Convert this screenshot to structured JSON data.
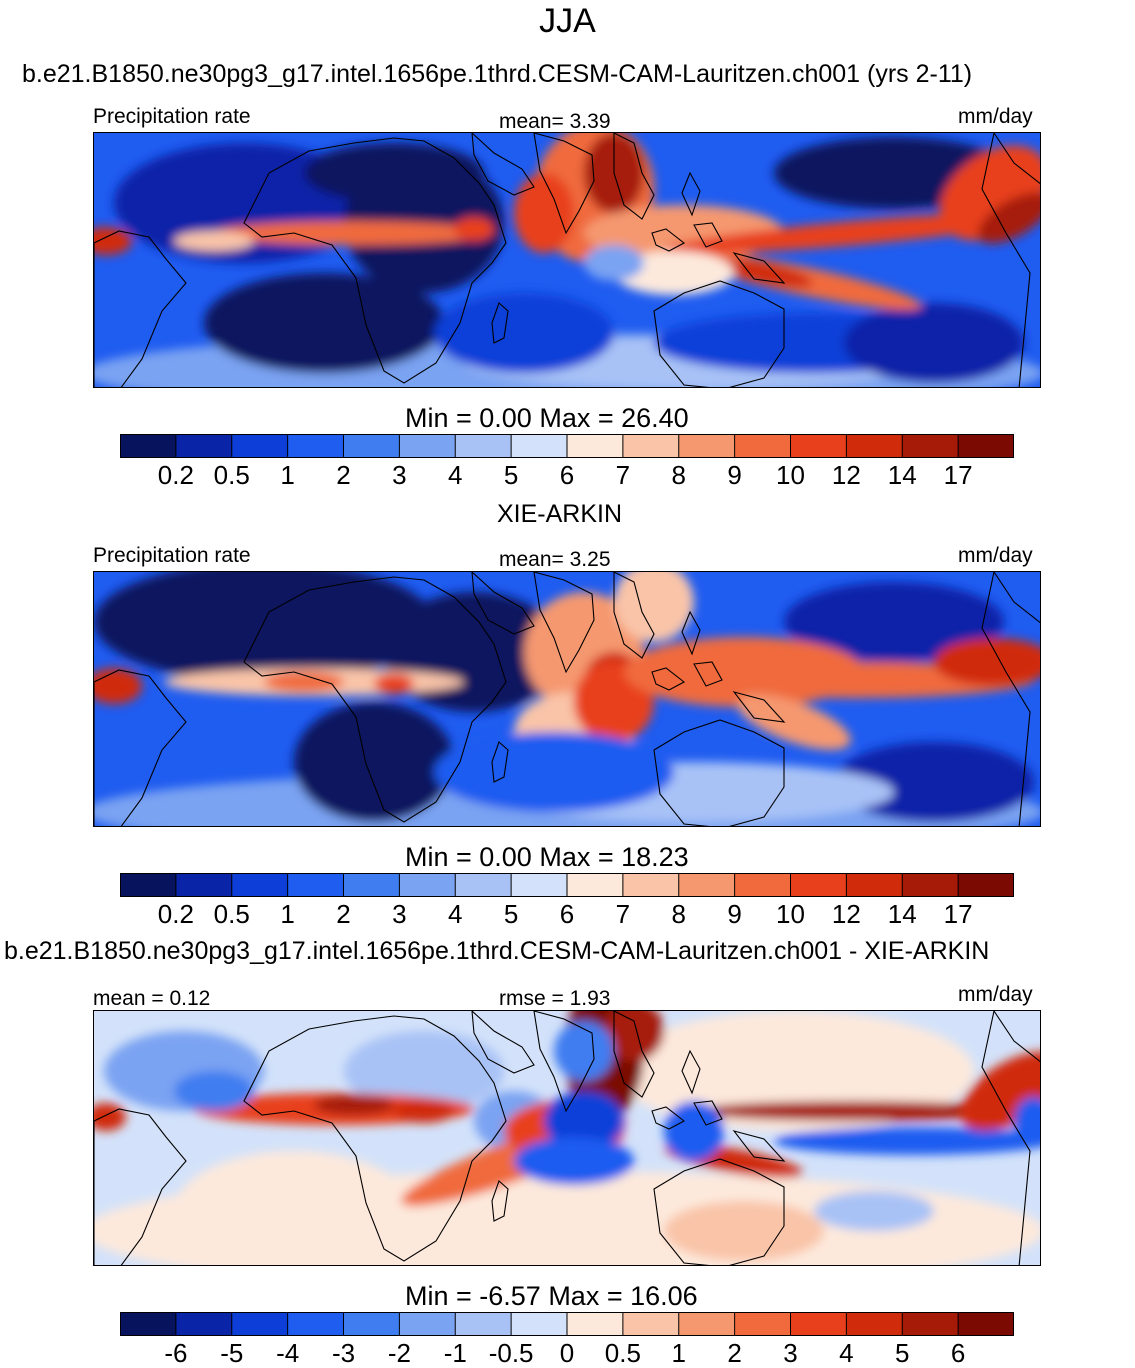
{
  "title": "JJA",
  "palette": {
    "colors": [
      "#08135e",
      "#0a24a8",
      "#0d3fd8",
      "#1f5cf0",
      "#3f7df0",
      "#7aa3f2",
      "#a8c2f6",
      "#d3e2fa",
      "#fde9dc",
      "#f9c4a8",
      "#f59870",
      "#f06a3e",
      "#e8401c",
      "#d02c0c",
      "#a61a08",
      "#7a0a02"
    ]
  },
  "chart_data": [
    {
      "type": "heatmap",
      "name": "model",
      "title": "b.e21.B1850.ne30pg3_g17.intel.1656pe.1thrd.CESM-CAM-Lauritzen.ch001 (yrs 2-11)",
      "left_label": "Precipitation rate",
      "center_label": "mean=   3.39",
      "units": "mm/day",
      "mean": 3.39,
      "min": 0.0,
      "max": 26.4,
      "minmax_text": "Min =   0.00 Max =  26.40",
      "levels": [
        "0.2",
        "0.5",
        "1",
        "2",
        "3",
        "4",
        "5",
        "6",
        "7",
        "8",
        "9",
        "10",
        "12",
        "14",
        "17"
      ]
    },
    {
      "type": "heatmap",
      "name": "obs",
      "title": "XIE-ARKIN",
      "left_label": "Precipitation rate",
      "center_label": "mean=   3.25",
      "units": "mm/day",
      "mean": 3.25,
      "min": 0.0,
      "max": 18.23,
      "minmax_text": "Min =   0.00 Max =  18.23",
      "levels": [
        "0.2",
        "0.5",
        "1",
        "2",
        "3",
        "4",
        "5",
        "6",
        "7",
        "8",
        "9",
        "10",
        "12",
        "14",
        "17"
      ]
    },
    {
      "type": "heatmap",
      "name": "diff",
      "title": "b.e21.B1850.ne30pg3_g17.intel.1656pe.1thrd.CESM-CAM-Lauritzen.ch001 - XIE-ARKIN",
      "left_label": "mean =   0.12",
      "center_label": "rmse =    1.93",
      "units": "mm/day",
      "mean": 0.12,
      "rmse": 1.93,
      "min": -6.57,
      "max": 16.06,
      "minmax_text": "Min =  -6.57 Max =  16.06",
      "levels": [
        "-6",
        "-5",
        "-4",
        "-3",
        "-2",
        "-1",
        "-0.5",
        "0",
        "0.5",
        "1",
        "2",
        "3",
        "4",
        "5",
        "6"
      ]
    }
  ]
}
